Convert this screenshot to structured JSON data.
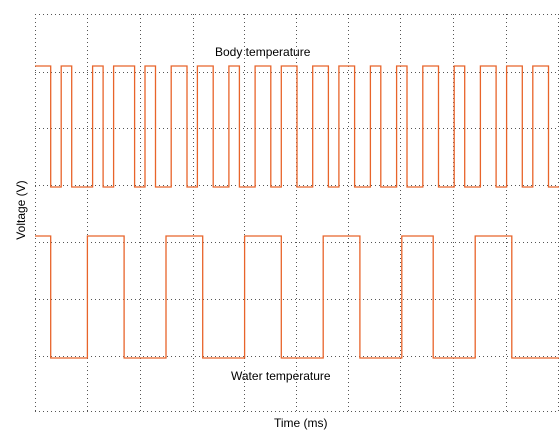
{
  "chart_data": {
    "type": "line",
    "title": "",
    "xlabel": "Time (ms)",
    "ylabel": "Voltage (V)",
    "grid": true,
    "legend": "none",
    "annotations": [
      "Body temperature",
      "Water temperature"
    ],
    "series": [
      {
        "name": "Body temperature",
        "color": "#e8642a",
        "high": 1,
        "low": 0,
        "edges": [
          0,
          3,
          5,
          7,
          11,
          13,
          15,
          19,
          21,
          23,
          26,
          29,
          31,
          34,
          37,
          39,
          42,
          45,
          47,
          50,
          53,
          56,
          58,
          61,
          64,
          66,
          69,
          71,
          74,
          77,
          80,
          82,
          85,
          88,
          90,
          93,
          95,
          98,
          100
        ]
      },
      {
        "name": "Water temperature",
        "color": "#e8642a",
        "high": 1,
        "low": 0,
        "edges": [
          0,
          3,
          10,
          17,
          25,
          32,
          40,
          47,
          55,
          62,
          70,
          76,
          84,
          91,
          100
        ]
      }
    ]
  }
}
